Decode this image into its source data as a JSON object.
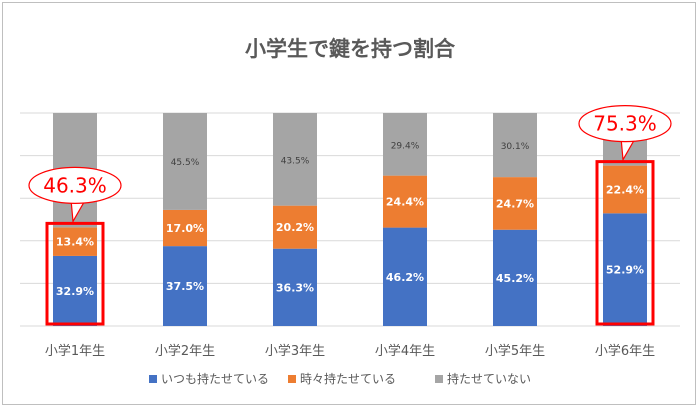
{
  "chart_data": {
    "type": "bar",
    "stacked": true,
    "title": "小学生で鍵を持つ割合",
    "categories": [
      "小学1年生",
      "小学2年生",
      "小学3年生",
      "小学4年生",
      "小学5年生",
      "小学6年生"
    ],
    "series": [
      {
        "name": "いつも持たせている",
        "color": "#4472c4",
        "values": [
          32.9,
          37.5,
          36.3,
          46.2,
          45.2,
          52.9
        ],
        "labels": [
          "32.9%",
          "37.5%",
          "36.3%",
          "46.2%",
          "45.2%",
          "52.9%"
        ]
      },
      {
        "name": "時々持たせている",
        "color": "#ed7d31",
        "values": [
          13.4,
          17.0,
          20.2,
          24.4,
          24.7,
          22.4
        ],
        "labels": [
          "13.4%",
          "17.0%",
          "20.2%",
          "24.4%",
          "24.7%",
          "22.4%"
        ]
      },
      {
        "name": "持たせていない",
        "color": "#a5a5a5",
        "values": [
          53.7,
          45.5,
          43.5,
          29.4,
          30.1,
          24.7
        ],
        "labels": [
          "",
          "45.5%",
          "43.5%",
          "29.4%",
          "30.1%",
          ""
        ]
      }
    ],
    "ylim": [
      0,
      100
    ],
    "grid": true,
    "legend_position": "bottom",
    "callouts": [
      {
        "category": "小学1年生",
        "text": "46.3%",
        "color": "#ff0000"
      },
      {
        "category": "小学6年生",
        "text": "75.3%",
        "color": "#ff0000"
      }
    ]
  }
}
